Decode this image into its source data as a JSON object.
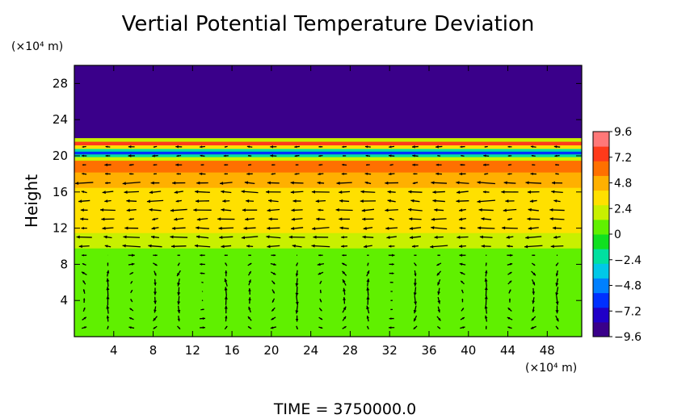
{
  "chart_data": {
    "type": "heatmap",
    "title": "Vertial Potential Temperature Deviation",
    "ylabel": "Height",
    "xlabel": "",
    "x_units": "(×10⁴ m)",
    "y_units": "(×10⁴ m)",
    "xlim": [
      0,
      51.5
    ],
    "ylim": [
      0,
      30
    ],
    "x_ticks": [
      4,
      8,
      12,
      16,
      20,
      24,
      28,
      32,
      36,
      40,
      44,
      48
    ],
    "x_tick_labels": [
      "4",
      "8",
      "12",
      "16",
      "20",
      "24",
      "28",
      "32",
      "36",
      "40",
      "44",
      "48"
    ],
    "y_ticks": [
      4,
      8,
      12,
      16,
      20,
      24,
      28
    ],
    "y_tick_labels": [
      "4",
      "8",
      "12",
      "16",
      "20",
      "24",
      "28"
    ],
    "colorbar": {
      "range": [
        -9.6,
        9.6
      ],
      "ticks": [
        9.6,
        7.2,
        4.8,
        2.4,
        0,
        -2.4,
        -4.8,
        -7.2,
        -9.6
      ],
      "tick_labels": [
        "9.6",
        "7.2",
        "4.8",
        "2.4",
        "0",
        "−2.4",
        "−4.8",
        "−7.2",
        "−9.6"
      ],
      "colors": [
        "#3a008a",
        "#2000c8",
        "#0030ff",
        "#0080ff",
        "#00c8e8",
        "#00e0a0",
        "#10e020",
        "#60f000",
        "#c8f000",
        "#ffe000",
        "#ffb000",
        "#ff7000",
        "#ff3a1a",
        "#ff7878"
      ]
    },
    "field_bands": [
      {
        "y_from": 0,
        "y_to": 9.8,
        "value": 0.3
      },
      {
        "y_from": 9.8,
        "y_to": 11.5,
        "value": 1.5
      },
      {
        "y_from": 11.5,
        "y_to": 14,
        "value": 3.2
      },
      {
        "y_from": 14,
        "y_to": 16.5,
        "value": 2.8
      },
      {
        "y_from": 16.5,
        "y_to": 18.2,
        "value": 4.5
      },
      {
        "y_from": 18.2,
        "y_to": 19.5,
        "value": 5.5
      },
      {
        "y_from": 19.5,
        "y_to": 19.9,
        "value": 2.0
      },
      {
        "y_from": 19.9,
        "y_to": 20.2,
        "value": -2.4
      },
      {
        "y_from": 20.2,
        "y_to": 20.5,
        "value": -6.0
      },
      {
        "y_from": 20.5,
        "y_to": 20.8,
        "value": -2.4
      },
      {
        "y_from": 20.8,
        "y_to": 21.2,
        "value": 3.0
      },
      {
        "y_from": 21.2,
        "y_to": 21.6,
        "value": 7.2
      },
      {
        "y_from": 21.6,
        "y_to": 22.0,
        "value": 2.4
      },
      {
        "y_from": 22.0,
        "y_to": 30,
        "value": -9.6
      }
    ],
    "vectors": {
      "x_step": 2.4,
      "x_start": 1.0,
      "y_levels": [
        1,
        2,
        3,
        4,
        5,
        6,
        7,
        8,
        9,
        10,
        11,
        12,
        13,
        14,
        15,
        16,
        17,
        18,
        19,
        20,
        21
      ],
      "description_free": true
    },
    "footer": "TIME  =  3750000.0",
    "colors": {
      "background": "#ffffff",
      "axis": "#000000",
      "arrow": "#000000"
    }
  }
}
